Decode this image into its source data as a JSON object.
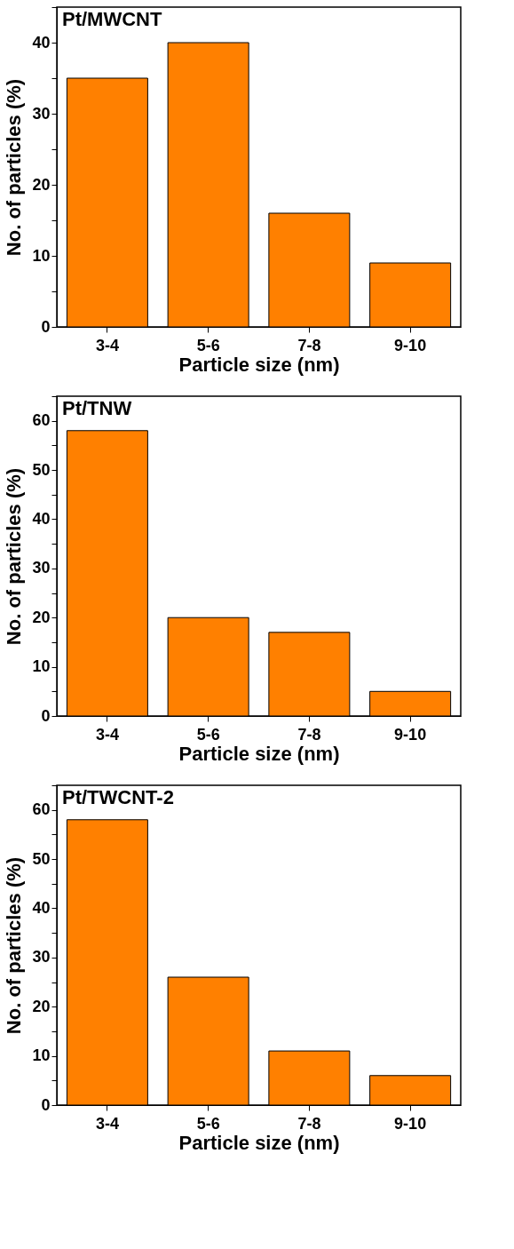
{
  "chart_data": [
    {
      "type": "bar",
      "title": "Pt/MWCNT",
      "xlabel": "Particle size (nm)",
      "ylabel": "No. of particles (%)",
      "categories": [
        "3-4",
        "5-6",
        "7-8",
        "9-10"
      ],
      "values": [
        35,
        40,
        16,
        9
      ],
      "color": "#ff8000",
      "ylim": [
        0,
        45
      ],
      "yticks": [
        0,
        {
          "value": 5,
          "label": null
        },
        10,
        {
          "value": 15,
          "label": null
        },
        20,
        {
          "value": 25,
          "label": null
        },
        30,
        {
          "value": 35,
          "label": null
        },
        40,
        {
          "value": 45,
          "label": null
        }
      ]
    },
    {
      "type": "bar",
      "title": "Pt/TNW",
      "xlabel": "Particle size (nm)",
      "ylabel": "No. of particles (%)",
      "categories": [
        "3-4",
        "5-6",
        "7-8",
        "9-10"
      ],
      "values": [
        58,
        20,
        17,
        5
      ],
      "color": "#ff8000",
      "ylim": [
        0,
        65
      ],
      "yticks": [
        0,
        {
          "value": 5,
          "label": null
        },
        10,
        {
          "value": 15,
          "label": null
        },
        20,
        {
          "value": 25,
          "label": null
        },
        30,
        {
          "value": 35,
          "label": null
        },
        40,
        {
          "value": 45,
          "label": null
        },
        50,
        {
          "value": 55,
          "label": null
        },
        60,
        {
          "value": 65,
          "label": null
        }
      ]
    },
    {
      "type": "bar",
      "title": "Pt/TWCNT-2",
      "xlabel": "Particle size (nm)",
      "ylabel": "No. of particles (%)",
      "categories": [
        "3-4",
        "5-6",
        "7-8",
        "9-10"
      ],
      "values": [
        58,
        26,
        11,
        6
      ],
      "color": "#ff8000",
      "ylim": [
        0,
        65
      ],
      "yticks": [
        0,
        {
          "value": 5,
          "label": null
        },
        10,
        {
          "value": 15,
          "label": null
        },
        20,
        {
          "value": 25,
          "label": null
        },
        30,
        {
          "value": 35,
          "label": null
        },
        40,
        {
          "value": 45,
          "label": null
        },
        50,
        {
          "value": 55,
          "label": null
        },
        60,
        {
          "value": 65,
          "label": null
        }
      ]
    }
  ]
}
